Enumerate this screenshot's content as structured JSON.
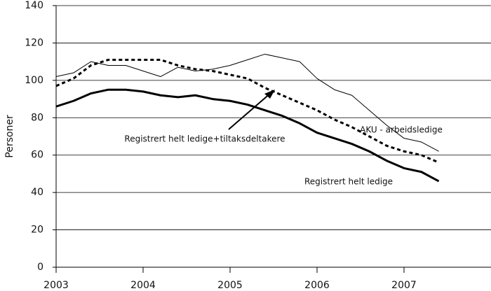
{
  "chart_data": {
    "type": "line",
    "y_label": "Personer",
    "x": [
      2003.0,
      2003.2,
      2003.4,
      2003.6,
      2003.8,
      2004.0,
      2004.2,
      2004.4,
      2004.6,
      2004.8,
      2005.0,
      2005.2,
      2005.4,
      2005.6,
      2005.8,
      2006.0,
      2006.2,
      2006.4,
      2006.6,
      2006.8,
      2007.0,
      2007.2,
      2007.4
    ],
    "series": [
      {
        "name": "AKU - arbeidsledige",
        "color": "#000000",
        "width": 1,
        "dash": false,
        "values": [
          102,
          104,
          110,
          108,
          108,
          105,
          102,
          107,
          105,
          106,
          108,
          111,
          114,
          112,
          110,
          101,
          95,
          92,
          84,
          76,
          69,
          67,
          62
        ]
      },
      {
        "name": "Registrert helt ledige+tiltaksdeltakere",
        "color": "#000000",
        "width": 3,
        "dash": true,
        "values": [
          97,
          101,
          108,
          111,
          111,
          111,
          111,
          108,
          106,
          105,
          103,
          101,
          96,
          92,
          88,
          84,
          79,
          75,
          70,
          65,
          62,
          60,
          56
        ]
      },
      {
        "name": "Registrert helt ledige",
        "color": "#000000",
        "width": 3,
        "dash": false,
        "values": [
          86,
          89,
          93,
          95,
          95,
          94,
          92,
          91,
          92,
          90,
          89,
          87,
          84,
          81,
          77,
          72,
          69,
          66,
          62,
          57,
          53,
          51,
          46
        ]
      }
    ],
    "xlim": [
      2003,
      2008
    ],
    "xticks": [
      2003,
      2004,
      2005,
      2006,
      2007
    ],
    "ylim": [
      0,
      140
    ],
    "yticks": [
      0,
      20,
      40,
      60,
      80,
      100,
      120,
      140
    ],
    "grid": true
  }
}
